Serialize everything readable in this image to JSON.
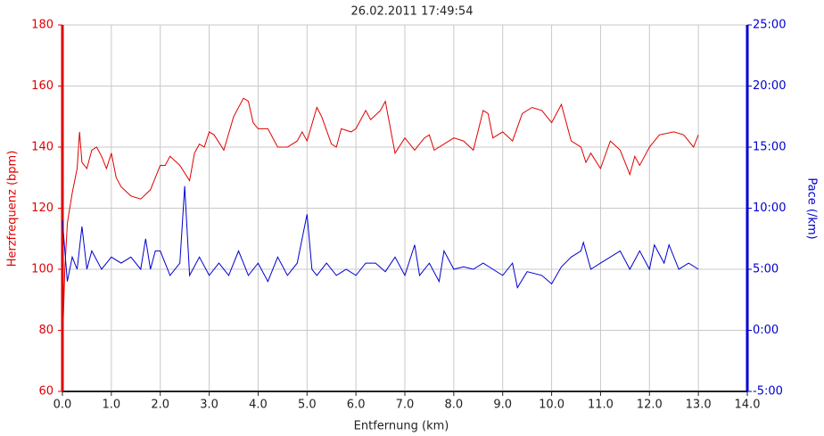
{
  "chart_data": {
    "type": "line",
    "title": "26.02.2011 17:49:54",
    "x_label": "Entfernung (km)",
    "y_label": "Herzfrequenz (bpm)",
    "y2_label": "Pace (/km)",
    "grid": true,
    "xlim": [
      0,
      14
    ],
    "xticks": [
      {
        "value": 0,
        "label": "0.0"
      },
      {
        "value": 1,
        "label": "1.0"
      },
      {
        "value": 2,
        "label": "2.0"
      },
      {
        "value": 3,
        "label": "3.0"
      },
      {
        "value": 4,
        "label": "4.0"
      },
      {
        "value": 5,
        "label": "5.0"
      },
      {
        "value": 6,
        "label": "6.0"
      },
      {
        "value": 7,
        "label": "7.0"
      },
      {
        "value": 8,
        "label": "8.0"
      },
      {
        "value": 9,
        "label": "9.0"
      },
      {
        "value": 10,
        "label": "10.0"
      },
      {
        "value": 11,
        "label": "11.0"
      },
      {
        "value": 12,
        "label": "12.0"
      },
      {
        "value": 13,
        "label": "13.0"
      },
      {
        "value": 14,
        "label": "14.0"
      }
    ],
    "ylim": [
      60,
      180
    ],
    "yticks": [
      60,
      80,
      100,
      120,
      140,
      160,
      180
    ],
    "y2lim": [
      -5,
      25
    ],
    "y2ticks": [
      {
        "value": -5,
        "label": "-5:00"
      },
      {
        "value": 0,
        "label": "0:00"
      },
      {
        "value": 5,
        "label": "5:00"
      },
      {
        "value": 10,
        "label": "10:00"
      },
      {
        "value": 15,
        "label": "15:00"
      },
      {
        "value": 20,
        "label": "20:00"
      },
      {
        "value": 25,
        "label": "25:00"
      }
    ],
    "series": [
      {
        "name": "Herzfrequenz",
        "color": "#e00000",
        "axis": "y",
        "x": [
          0,
          0.05,
          0.1,
          0.2,
          0.3,
          0.35,
          0.4,
          0.5,
          0.6,
          0.7,
          0.8,
          0.9,
          1.0,
          1.1,
          1.2,
          1.4,
          1.6,
          1.8,
          1.9,
          2.0,
          2.1,
          2.2,
          2.4,
          2.6,
          2.7,
          2.8,
          2.9,
          3.0,
          3.1,
          3.3,
          3.5,
          3.7,
          3.8,
          3.9,
          4.0,
          4.2,
          4.4,
          4.6,
          4.8,
          4.9,
          5.0,
          5.2,
          5.3,
          5.5,
          5.6,
          5.7,
          5.9,
          6.0,
          6.2,
          6.3,
          6.5,
          6.6,
          6.8,
          7.0,
          7.2,
          7.4,
          7.5,
          7.6,
          7.8,
          8.0,
          8.2,
          8.4,
          8.6,
          8.7,
          8.8,
          9.0,
          9.2,
          9.4,
          9.6,
          9.8,
          10.0,
          10.2,
          10.4,
          10.6,
          10.7,
          10.8,
          11.0,
          11.2,
          11.4,
          11.5,
          11.6,
          11.7,
          11.8,
          12.0,
          12.2,
          12.5,
          12.7,
          12.9,
          13.0
        ],
        "values": [
          74,
          100,
          115,
          125,
          133,
          145,
          135,
          133,
          139,
          140,
          137,
          133,
          138,
          130,
          127,
          124,
          123,
          126,
          130,
          134,
          134,
          137,
          134,
          129,
          138,
          141,
          140,
          145,
          144,
          139,
          150,
          156,
          155,
          148,
          146,
          146,
          140,
          140,
          142,
          145,
          142,
          153,
          150,
          141,
          140,
          146,
          145,
          146,
          152,
          149,
          152,
          155,
          138,
          143,
          139,
          143,
          144,
          139,
          141,
          143,
          142,
          139,
          152,
          151,
          143,
          145,
          142,
          151,
          153,
          152,
          148,
          154,
          142,
          140,
          135,
          138,
          133,
          142,
          139,
          135,
          131,
          137,
          134,
          140,
          144,
          145,
          144,
          140,
          144
        ]
      },
      {
        "name": "Pace",
        "color": "#0000d0",
        "axis": "y2",
        "x": [
          0,
          0.1,
          0.2,
          0.3,
          0.4,
          0.5,
          0.6,
          0.8,
          1.0,
          1.2,
          1.4,
          1.6,
          1.7,
          1.8,
          1.9,
          2.0,
          2.2,
          2.4,
          2.5,
          2.6,
          2.8,
          3.0,
          3.2,
          3.4,
          3.6,
          3.8,
          4.0,
          4.2,
          4.4,
          4.6,
          4.8,
          5.0,
          5.1,
          5.2,
          5.4,
          5.6,
          5.8,
          6.0,
          6.2,
          6.4,
          6.6,
          6.8,
          7.0,
          7.2,
          7.3,
          7.5,
          7.7,
          7.8,
          8.0,
          8.2,
          8.4,
          8.6,
          8.8,
          9.0,
          9.2,
          9.3,
          9.5,
          9.8,
          10.0,
          10.2,
          10.4,
          10.6,
          10.65,
          10.8,
          11.0,
          11.2,
          11.4,
          11.6,
          11.8,
          12.0,
          12.1,
          12.3,
          12.4,
          12.6,
          12.8,
          13.0
        ],
        "values": [
          9,
          4,
          6,
          5,
          8.5,
          5,
          6.5,
          5,
          6,
          5.5,
          6,
          5,
          7.5,
          5,
          6.5,
          6.5,
          4.5,
          5.5,
          11.8,
          4.5,
          6,
          4.5,
          5.5,
          4.5,
          6.5,
          4.5,
          5.5,
          4,
          6,
          4.5,
          5.5,
          9.5,
          5,
          4.5,
          5.5,
          4.5,
          5,
          4.5,
          5.5,
          5.5,
          4.8,
          6,
          4.5,
          7,
          4.5,
          5.5,
          4,
          6.5,
          5,
          5.2,
          5,
          5.5,
          5,
          4.5,
          5.5,
          3.5,
          4.8,
          4.5,
          3.8,
          5.2,
          6,
          6.5,
          7.2,
          5,
          5.5,
          6,
          6.5,
          5,
          6.5,
          5,
          7,
          5.5,
          7,
          5,
          5.5,
          5
        ]
      }
    ]
  }
}
